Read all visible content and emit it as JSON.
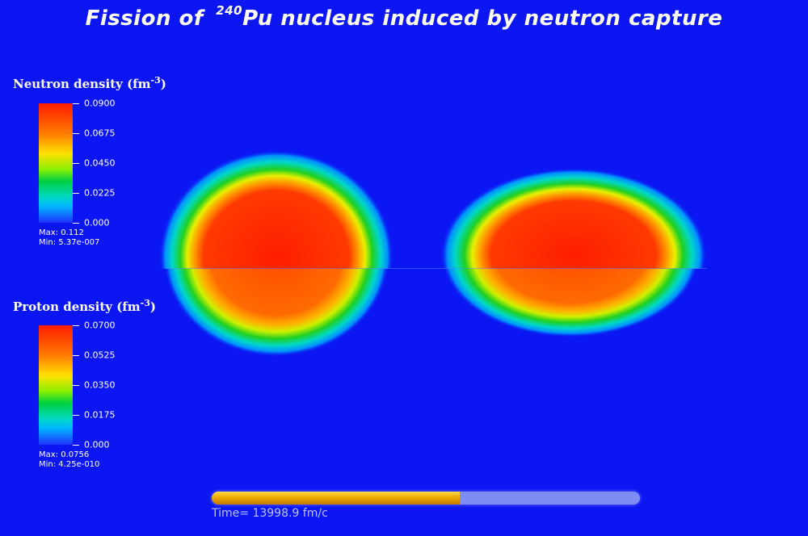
{
  "title": {
    "prefix": "Fission of",
    "isotope_mass": "240",
    "suffix": "Pu nucleus induced by neutron capture"
  },
  "neutron_colorbar": {
    "label": "Neutron density (fm",
    "label_exp": "-3",
    "label_close": ")",
    "ticks": [
      "0.0900",
      "0.0675",
      "0.0450",
      "0.0225",
      "0.000"
    ],
    "max": "Max: 0.112",
    "min": "Min: 5.37e-007"
  },
  "proton_colorbar": {
    "label": "Proton density (fm",
    "label_exp": "-3",
    "label_close": ")",
    "ticks": [
      "0.0700",
      "0.0525",
      "0.0350",
      "0.0175",
      "0.000"
    ],
    "max": "Max: 0.0756",
    "min": "Min: 4.25e-010"
  },
  "progress": {
    "fraction": 0.58,
    "time_label": "Time= 13998.9 fm/c"
  },
  "colors": {
    "background": "#0b16f2",
    "progress_fill": "#f0a800",
    "progress_track": "#7f8cf5"
  }
}
